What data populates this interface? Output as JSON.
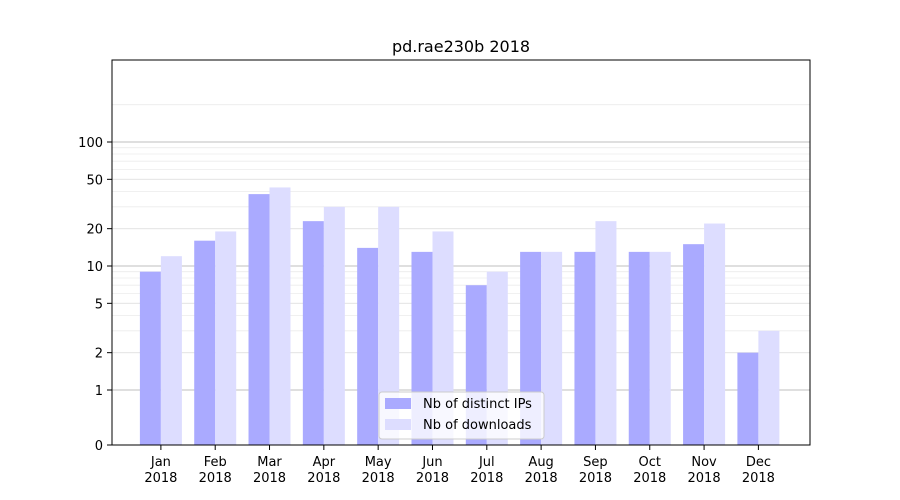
{
  "chart_data": {
    "type": "bar",
    "title": "pd.rae230b 2018",
    "xlabel": "",
    "ylabel": "",
    "yscale": "symlog",
    "categories": [
      [
        "Jan",
        "2018"
      ],
      [
        "Feb",
        "2018"
      ],
      [
        "Mar",
        "2018"
      ],
      [
        "Apr",
        "2018"
      ],
      [
        "May",
        "2018"
      ],
      [
        "Jun",
        "2018"
      ],
      [
        "Jul",
        "2018"
      ],
      [
        "Aug",
        "2018"
      ],
      [
        "Sep",
        "2018"
      ],
      [
        "Oct",
        "2018"
      ],
      [
        "Nov",
        "2018"
      ],
      [
        "Dec",
        "2018"
      ]
    ],
    "yticks": [
      0,
      1,
      2,
      5,
      10,
      20,
      50,
      100
    ],
    "ylim": [
      0,
      120
    ],
    "series": [
      {
        "name": "Nb of distinct IPs",
        "values": [
          9,
          16,
          38,
          23,
          14,
          13,
          7,
          13,
          13,
          13,
          15,
          2
        ],
        "color": "#aaaaff"
      },
      {
        "name": "Nb of downloads",
        "values": [
          12,
          19,
          43,
          30,
          30,
          19,
          9,
          13,
          23,
          13,
          22,
          3
        ],
        "color": "#ddddff"
      }
    ],
    "legend": "bottom-center",
    "grid": true
  }
}
